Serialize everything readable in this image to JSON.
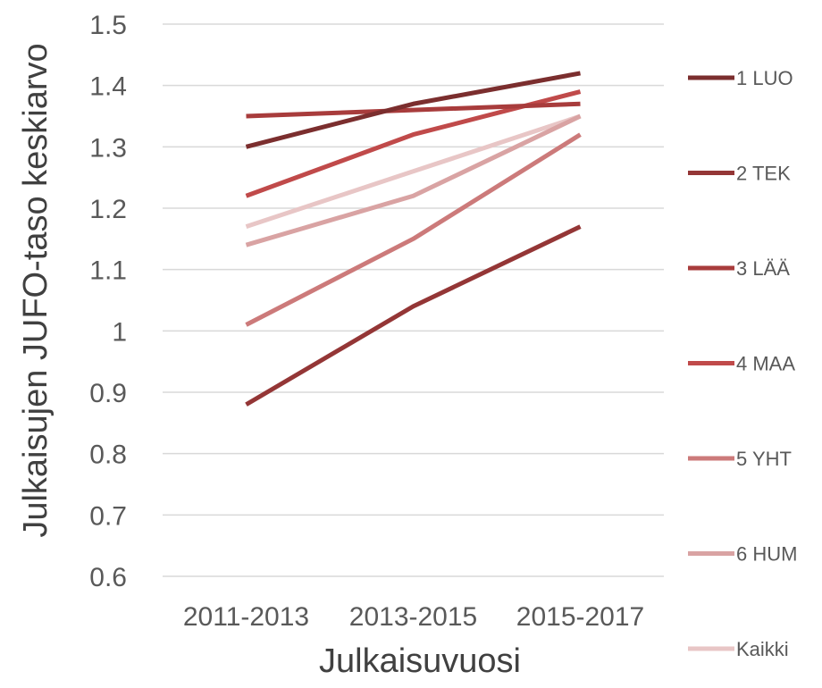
{
  "chart_data": {
    "type": "line",
    "xlabel": "Julkaisuvuosi",
    "ylabel": "Julkaisujen JUFO-taso keskiarvo",
    "categories": [
      "2011-2013",
      "2013-2015",
      "2015-2017"
    ],
    "ylim": [
      0.6,
      1.5
    ],
    "yticks": [
      "0.6",
      "0.7",
      "0.8",
      "0.9",
      "1",
      "1.1",
      "1.2",
      "1.3",
      "1.4",
      "1.5"
    ],
    "grid": true,
    "legend_position": "right",
    "series": [
      {
        "name": "1 LUO",
        "color": "#7b2e2e",
        "values": [
          1.3,
          1.37,
          1.42
        ]
      },
      {
        "name": "2 TEK",
        "color": "#943636",
        "values": [
          0.88,
          1.04,
          1.17
        ]
      },
      {
        "name": "3 LÄÄ",
        "color": "#a83c3c",
        "values": [
          1.35,
          1.36,
          1.37
        ]
      },
      {
        "name": "4 MAA",
        "color": "#c04a4a",
        "values": [
          1.22,
          1.32,
          1.39
        ]
      },
      {
        "name": "5 YHT",
        "color": "#cc7a7a",
        "values": [
          1.01,
          1.15,
          1.32
        ]
      },
      {
        "name": "6 HUM",
        "color": "#d9a3a3",
        "values": [
          1.14,
          1.22,
          1.35
        ]
      },
      {
        "name": "Kaikki",
        "color": "#e8c6c6",
        "values": [
          1.17,
          1.26,
          1.35
        ]
      }
    ]
  }
}
